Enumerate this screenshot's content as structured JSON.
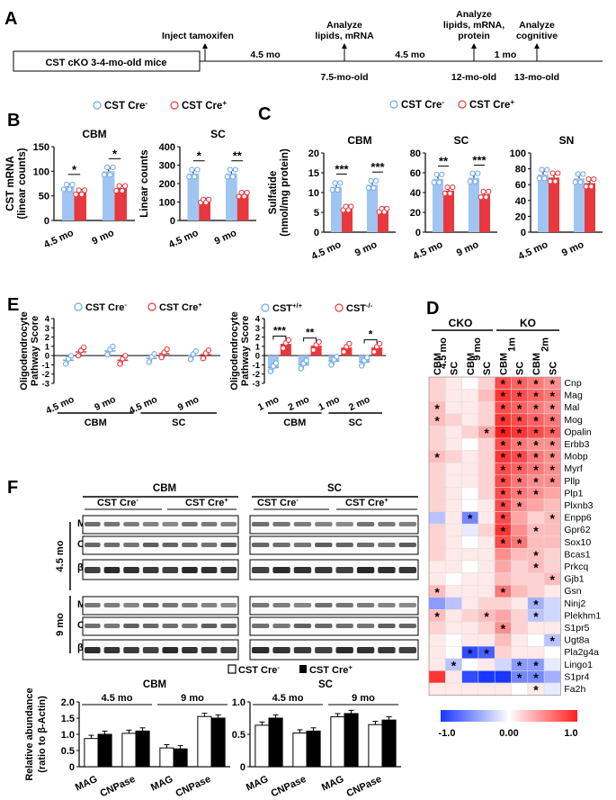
{
  "panels": {
    "A": "A",
    "B": "B",
    "C": "C",
    "D": "D",
    "E": "E",
    "F": "F"
  },
  "colors": {
    "blue": "#9fc5f0",
    "red": "#e8383d",
    "blue_dot": "#6fa8e6",
    "red_dot": "#e8383d"
  },
  "timeline": {
    "box_label": "CST cKO 3-4-mo-old mice",
    "events": [
      {
        "label": "Inject tamoxifen",
        "lines": [
          "Inject tamoxifen"
        ]
      },
      {
        "label": "7.5-mo-old",
        "lines": [
          "Analyze",
          "lipids, mRNA"
        ]
      },
      {
        "label": "12-mo-old",
        "lines": [
          "Analyze",
          "lipids, mRNA,",
          "protein"
        ]
      },
      {
        "label": "13-mo-old",
        "lines": [
          "Analyze",
          "cognitive"
        ]
      }
    ],
    "intervals": [
      "4.5 mo",
      "4.5 mo",
      "1 mo"
    ]
  },
  "legend_B": [
    "CST Cre-",
    "CST Cre+"
  ],
  "legend_C": [
    "CST Cre-",
    "CST Cre+"
  ],
  "legend_E1": [
    "CST Cre-",
    "CST Cre+"
  ],
  "legend_E2": [
    "CST+/+",
    "CST-/-"
  ],
  "legend_F": [
    "CST Cre-",
    "CST Cre+"
  ],
  "chart_data": [
    {
      "id": "B_CBM",
      "type": "bar",
      "title": "CBM",
      "ylabel": "CST mRNA (linear counts)",
      "categories": [
        "4.5 mo",
        "9 mo"
      ],
      "ylim": [
        0,
        150
      ],
      "yticks": [
        0,
        50,
        100,
        150
      ],
      "series": [
        {
          "name": "CST Cre-",
          "values": [
            68,
            100
          ]
        },
        {
          "name": "CST Cre+",
          "values": [
            57,
            65
          ]
        }
      ],
      "sig": [
        "*",
        "*"
      ]
    },
    {
      "id": "B_SC",
      "type": "bar",
      "title": "SC",
      "ylabel": "Linear counts",
      "categories": [
        "4.5 mo",
        "9 mo"
      ],
      "ylim": [
        0,
        400
      ],
      "yticks": [
        0,
        100,
        200,
        300,
        400
      ],
      "series": [
        {
          "name": "CST Cre-",
          "values": [
            255,
            255
          ]
        },
        {
          "name": "CST Cre+",
          "values": [
            105,
            140
          ]
        }
      ],
      "sig": [
        "*",
        "**"
      ]
    },
    {
      "id": "C_CBM",
      "type": "bar",
      "title": "CBM",
      "ylabel": "Sulfatide (nmol/mg protein)",
      "categories": [
        "4.5 mo",
        "9 mo"
      ],
      "ylim": [
        0,
        20
      ],
      "yticks": [
        0,
        5,
        10,
        15,
        20
      ],
      "series": [
        {
          "name": "CST Cre-",
          "values": [
            11.5,
            12
          ]
        },
        {
          "name": "CST Cre+",
          "values": [
            6,
            5.5
          ]
        }
      ],
      "sig": [
        "***",
        "***"
      ]
    },
    {
      "id": "C_SC",
      "type": "bar",
      "title": "SC",
      "ylabel": "",
      "categories": [
        "4.5 mo",
        "9 mo"
      ],
      "ylim": [
        0,
        80
      ],
      "yticks": [
        0,
        20,
        40,
        60,
        80
      ],
      "series": [
        {
          "name": "CST Cre-",
          "values": [
            54,
            55
          ]
        },
        {
          "name": "CST Cre+",
          "values": [
            42,
            38
          ]
        }
      ],
      "sig": [
        "**",
        "***"
      ]
    },
    {
      "id": "C_SN",
      "type": "bar",
      "title": "SN",
      "ylabel": "",
      "categories": [
        "4.5 mo",
        "9 mo"
      ],
      "ylim": [
        0,
        100
      ],
      "yticks": [
        0,
        20,
        40,
        60,
        80,
        100
      ],
      "series": [
        {
          "name": "CST Cre-",
          "values": [
            73,
            68
          ]
        },
        {
          "name": "CST Cre+",
          "values": [
            69,
            62
          ]
        }
      ],
      "sig": []
    },
    {
      "id": "E_left",
      "type": "scatter",
      "ylabel": "Oligodendrocyte Pathway Score",
      "categories": [
        "4.5 mo",
        "9 mo",
        "4.5 mo",
        "9 mo"
      ],
      "groups": [
        "CBM",
        "SC"
      ],
      "ylim": [
        -3,
        4
      ],
      "yticks": [
        -3,
        -2,
        -1,
        0,
        1,
        2,
        3,
        4
      ],
      "series": [
        {
          "name": "CST Cre-",
          "values": [
            -0.5,
            0.5,
            -0.3,
            0.0
          ]
        },
        {
          "name": "CST Cre+",
          "values": [
            0.4,
            -0.5,
            0.2,
            0.1
          ]
        }
      ],
      "sig": []
    },
    {
      "id": "E_right",
      "type": "scatter",
      "ylabel": "Oligodendrocyte Pathway Score",
      "categories": [
        "1 mo",
        "2 mo",
        "1 mo",
        "2 mo"
      ],
      "groups": [
        "CBM",
        "SC"
      ],
      "ylim": [
        -3,
        4
      ],
      "yticks": [
        -3,
        -2,
        -1,
        0,
        1,
        2,
        3,
        4
      ],
      "series": [
        {
          "name": "CST+/+",
          "values": [
            -1.3,
            -1.0,
            -0.6,
            -0.7
          ]
        },
        {
          "name": "CST-/-",
          "values": [
            1.2,
            1.0,
            0.8,
            0.8
          ]
        }
      ],
      "sig": [
        "***",
        "**",
        "",
        "*"
      ]
    },
    {
      "id": "D",
      "type": "heatmap",
      "colorbar": [
        -1.0,
        0.0,
        1.0
      ],
      "colorbar_labels": [
        "-1.0",
        "0.00",
        "1.0"
      ],
      "top_groups": [
        "CKO",
        "KO"
      ],
      "sub_groups": [
        "4.5 mo",
        "9 mo",
        "1m",
        "2m"
      ],
      "columns": [
        "CBM",
        "SC",
        "CBM",
        "SC",
        "CBM",
        "SC",
        "CBM",
        "SC"
      ],
      "rows": [
        "Cnp",
        "Mag",
        "Mal",
        "Mog",
        "Opalin",
        "Erbb3",
        "Mobp",
        "Myrf",
        "Pllp",
        "Plp1",
        "Plxnb3",
        "Enpp6",
        "Gpr62",
        "Sox10",
        "Bcas1",
        "Prkcq",
        "Gjb1",
        "Gsn",
        "Ninj2",
        "Plekhm1",
        "S1pr5",
        "Ugt8a",
        "Pla2g4a",
        "Lingo1",
        "S1pr4",
        "Fa2h"
      ],
      "values": [
        [
          0.2,
          0.1,
          0.0,
          0.2,
          0.8,
          0.7,
          0.6,
          0.5
        ],
        [
          0.2,
          0.1,
          0.1,
          0.3,
          0.9,
          0.8,
          0.7,
          0.6
        ],
        [
          0.3,
          0.1,
          0.1,
          0.2,
          0.8,
          0.7,
          0.6,
          0.5
        ],
        [
          0.3,
          0.2,
          0.1,
          0.2,
          0.9,
          0.8,
          0.7,
          0.6
        ],
        [
          0.2,
          0.1,
          0.2,
          0.4,
          1.0,
          0.9,
          0.8,
          0.7
        ],
        [
          0.2,
          0.1,
          0.0,
          0.2,
          0.8,
          0.6,
          0.5,
          0.5
        ],
        [
          0.3,
          0.2,
          0.1,
          0.2,
          0.9,
          0.8,
          0.6,
          0.5
        ],
        [
          0.2,
          0.1,
          0.1,
          0.2,
          0.8,
          0.7,
          0.6,
          0.5
        ],
        [
          0.2,
          0.1,
          0.1,
          0.2,
          0.8,
          0.6,
          0.5,
          0.5
        ],
        [
          0.2,
          0.1,
          0.0,
          0.2,
          0.8,
          0.6,
          0.5,
          0.4
        ],
        [
          0.2,
          0.1,
          0.0,
          0.1,
          0.8,
          0.5,
          0.4,
          0.3
        ],
        [
          -0.3,
          0.1,
          -0.6,
          0.1,
          0.8,
          0.4,
          0.2,
          0.3
        ],
        [
          0.2,
          0.1,
          -0.1,
          0.2,
          0.9,
          0.5,
          0.3,
          0.3
        ],
        [
          0.2,
          0.1,
          0.0,
          0.1,
          0.8,
          0.6,
          0.3,
          0.3
        ],
        [
          0.2,
          0.1,
          0.1,
          0.1,
          0.5,
          0.3,
          0.3,
          0.2
        ],
        [
          0.1,
          0.1,
          0.0,
          0.1,
          0.4,
          0.2,
          0.3,
          0.2
        ],
        [
          0.1,
          0.0,
          0.1,
          0.1,
          0.3,
          0.2,
          0.2,
          0.3
        ],
        [
          0.3,
          0.1,
          0.1,
          0.1,
          0.6,
          0.3,
          0.2,
          0.1
        ],
        [
          -0.5,
          -0.3,
          0.1,
          0.2,
          0.2,
          0.1,
          -0.4,
          -0.2
        ],
        [
          0.3,
          0.1,
          0.2,
          0.3,
          0.4,
          0.2,
          -0.3,
          -0.2
        ],
        [
          0.2,
          0.1,
          0.1,
          0.2,
          0.5,
          0.2,
          0.1,
          0.1
        ],
        [
          0.1,
          0.0,
          0.1,
          0.1,
          0.3,
          0.1,
          0.0,
          -0.3
        ],
        [
          0.1,
          0.0,
          -0.9,
          -0.8,
          0.2,
          0.1,
          0.1,
          0.0
        ],
        [
          0.1,
          -0.3,
          0.0,
          0.1,
          -0.2,
          -0.5,
          -0.5,
          -0.1
        ],
        [
          0.9,
          0.1,
          -0.9,
          -1.0,
          -1.0,
          -0.6,
          -0.6,
          -0.4
        ],
        [
          0.1,
          0.1,
          0.1,
          0.1,
          0.1,
          0.0,
          0.1,
          -0.1
        ]
      ],
      "stars": [
        [
          0,
          4
        ],
        [
          0,
          5
        ],
        [
          0,
          6
        ],
        [
          0,
          7
        ],
        [
          1,
          4
        ],
        [
          1,
          5
        ],
        [
          1,
          6
        ],
        [
          1,
          7
        ],
        [
          2,
          0
        ],
        [
          2,
          4
        ],
        [
          2,
          5
        ],
        [
          2,
          6
        ],
        [
          2,
          7
        ],
        [
          3,
          0
        ],
        [
          3,
          4
        ],
        [
          3,
          5
        ],
        [
          3,
          6
        ],
        [
          3,
          7
        ],
        [
          4,
          3
        ],
        [
          4,
          4
        ],
        [
          4,
          5
        ],
        [
          4,
          6
        ],
        [
          4,
          7
        ],
        [
          5,
          4
        ],
        [
          5,
          5
        ],
        [
          5,
          6
        ],
        [
          5,
          7
        ],
        [
          6,
          0
        ],
        [
          6,
          4
        ],
        [
          6,
          5
        ],
        [
          6,
          6
        ],
        [
          6,
          7
        ],
        [
          7,
          4
        ],
        [
          7,
          5
        ],
        [
          7,
          6
        ],
        [
          7,
          7
        ],
        [
          8,
          4
        ],
        [
          8,
          5
        ],
        [
          8,
          6
        ],
        [
          8,
          7
        ],
        [
          9,
          4
        ],
        [
          9,
          5
        ],
        [
          9,
          6
        ],
        [
          10,
          4
        ],
        [
          10,
          5
        ],
        [
          11,
          2
        ],
        [
          11,
          4
        ],
        [
          11,
          7
        ],
        [
          12,
          4
        ],
        [
          12,
          6
        ],
        [
          13,
          4
        ],
        [
          13,
          5
        ],
        [
          14,
          6
        ],
        [
          15,
          6
        ],
        [
          16,
          7
        ],
        [
          17,
          0
        ],
        [
          17,
          4
        ],
        [
          18,
          6
        ],
        [
          19,
          0
        ],
        [
          19,
          3
        ],
        [
          19,
          6
        ],
        [
          20,
          4
        ],
        [
          21,
          7
        ],
        [
          22,
          2
        ],
        [
          22,
          3
        ],
        [
          23,
          1
        ],
        [
          23,
          5
        ],
        [
          23,
          6
        ],
        [
          24,
          5
        ],
        [
          24,
          6
        ],
        [
          25,
          6
        ]
      ]
    },
    {
      "id": "F_CBM",
      "type": "bar",
      "title": "CBM",
      "ylabel": "Relative abundance (ratio to β-Actin)",
      "categories": [
        "MAG",
        "CNPase",
        "MAG",
        "CNPase"
      ],
      "groups": [
        "4.5 mo",
        "9 mo"
      ],
      "ylim": [
        0,
        2.0
      ],
      "yticks": [
        0,
        0.5,
        1.0,
        1.5,
        2.0
      ],
      "series": [
        {
          "name": "CST Cre-",
          "values": [
            0.87,
            1.03,
            0.58,
            1.55
          ]
        },
        {
          "name": "CST Cre+",
          "values": [
            1.0,
            1.1,
            0.55,
            1.5
          ]
        }
      ]
    },
    {
      "id": "F_SC",
      "type": "bar",
      "title": "SC",
      "ylabel": "",
      "categories": [
        "MAG",
        "CNPase",
        "MAG",
        "CNPase"
      ],
      "groups": [
        "4.5 mo",
        "9 mo"
      ],
      "ylim": [
        0,
        1.0
      ],
      "yticks": [
        0,
        0.5,
        1.0
      ],
      "series": [
        {
          "name": "CST Cre-",
          "values": [
            0.64,
            0.52,
            0.77,
            0.65
          ]
        },
        {
          "name": "CST Cre+",
          "values": [
            0.75,
            0.55,
            0.82,
            0.72
          ]
        }
      ]
    }
  ],
  "western": {
    "tissues": [
      "CBM",
      "SC"
    ],
    "genotypes": [
      "CST Cre-",
      "CST Cre+"
    ],
    "ages": [
      "4.5 mo",
      "9 mo"
    ],
    "bands": [
      "MAG",
      "CNPase",
      "β-actin"
    ]
  }
}
